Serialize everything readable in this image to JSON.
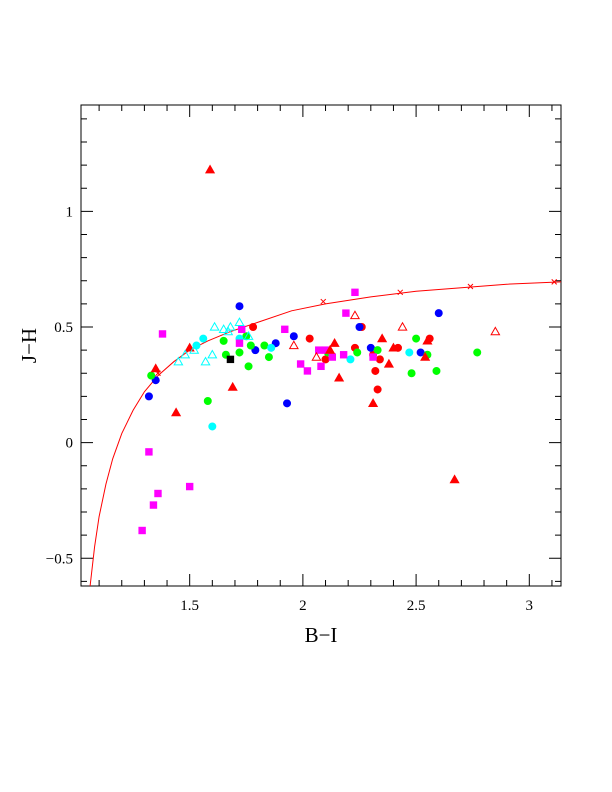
{
  "chart_data": {
    "type": "scatter",
    "xlabel": "B−I",
    "ylabel": "J−H",
    "xlim": [
      1.02,
      3.14
    ],
    "ylim": [
      -0.62,
      1.46
    ],
    "x_ticks": [
      {
        "v": 1.5,
        "label": "1.5"
      },
      {
        "v": 2.0,
        "label": "2"
      },
      {
        "v": 2.5,
        "label": "2.5"
      },
      {
        "v": 3.0,
        "label": "3"
      }
    ],
    "y_ticks": [
      {
        "v": -0.5,
        "label": "−0.5"
      },
      {
        "v": 0.0,
        "label": "0"
      },
      {
        "v": 0.5,
        "label": "0.5"
      },
      {
        "v": 1.0,
        "label": "1"
      }
    ],
    "grid": false,
    "colors": {
      "red": "#ff0000",
      "blue": "#0000ff",
      "green": "#00ff00",
      "cyan": "#00ffff",
      "magenta": "#ff00ff",
      "black": "#000000",
      "curve": "#ff0000"
    },
    "curve": {
      "color": "red",
      "points": [
        [
          1.06,
          -0.62
        ],
        [
          1.08,
          -0.45
        ],
        [
          1.1,
          -0.32
        ],
        [
          1.13,
          -0.18
        ],
        [
          1.16,
          -0.07
        ],
        [
          1.2,
          0.04
        ],
        [
          1.25,
          0.14
        ],
        [
          1.3,
          0.22
        ],
        [
          1.36,
          0.29
        ],
        [
          1.43,
          0.35
        ],
        [
          1.5,
          0.4
        ],
        [
          1.58,
          0.44
        ],
        [
          1.68,
          0.48
        ],
        [
          1.8,
          0.52
        ],
        [
          1.95,
          0.57
        ],
        [
          2.1,
          0.6
        ],
        [
          2.3,
          0.63
        ],
        [
          2.5,
          0.655
        ],
        [
          2.7,
          0.67
        ],
        [
          2.9,
          0.685
        ],
        [
          3.14,
          0.695
        ]
      ],
      "markers": [
        [
          1.36,
          0.3
        ],
        [
          2.09,
          0.61
        ],
        [
          2.43,
          0.65
        ],
        [
          2.74,
          0.675
        ],
        [
          3.11,
          0.695
        ]
      ]
    },
    "series": [
      {
        "marker": "circle",
        "color": "red",
        "filled": true,
        "points": [
          [
            1.78,
            0.5
          ],
          [
            2.03,
            0.45
          ],
          [
            2.1,
            0.36
          ],
          [
            2.23,
            0.41
          ],
          [
            2.26,
            0.5
          ],
          [
            2.31,
            0.38
          ],
          [
            2.32,
            0.31
          ],
          [
            2.33,
            0.23
          ],
          [
            2.34,
            0.36
          ],
          [
            2.42,
            0.41
          ],
          [
            2.56,
            0.45
          ]
        ]
      },
      {
        "marker": "circle",
        "color": "blue",
        "filled": true,
        "points": [
          [
            1.32,
            0.2
          ],
          [
            1.35,
            0.27
          ],
          [
            1.72,
            0.59
          ],
          [
            1.79,
            0.4
          ],
          [
            1.88,
            0.43
          ],
          [
            1.93,
            0.17
          ],
          [
            1.96,
            0.46
          ],
          [
            2.25,
            0.5
          ],
          [
            2.3,
            0.41
          ],
          [
            2.52,
            0.39
          ],
          [
            2.6,
            0.56
          ]
        ]
      },
      {
        "marker": "circle",
        "color": "green",
        "filled": true,
        "points": [
          [
            1.33,
            0.29
          ],
          [
            1.58,
            0.18
          ],
          [
            1.65,
            0.44
          ],
          [
            1.66,
            0.38
          ],
          [
            1.72,
            0.39
          ],
          [
            1.75,
            0.46
          ],
          [
            1.76,
            0.33
          ],
          [
            1.77,
            0.42
          ],
          [
            1.83,
            0.42
          ],
          [
            1.85,
            0.37
          ],
          [
            2.11,
            0.39
          ],
          [
            2.24,
            0.39
          ],
          [
            2.33,
            0.4
          ],
          [
            2.48,
            0.3
          ],
          [
            2.5,
            0.45
          ],
          [
            2.55,
            0.38
          ],
          [
            2.59,
            0.31
          ],
          [
            2.77,
            0.39
          ]
        ]
      },
      {
        "marker": "circle",
        "color": "cyan",
        "filled": true,
        "points": [
          [
            1.53,
            0.42
          ],
          [
            1.56,
            0.45
          ],
          [
            1.6,
            0.07
          ],
          [
            1.72,
            0.45
          ],
          [
            1.86,
            0.41
          ],
          [
            2.21,
            0.36
          ],
          [
            2.47,
            0.39
          ]
        ]
      },
      {
        "marker": "square",
        "color": "magenta",
        "filled": true,
        "points": [
          [
            1.29,
            -0.38
          ],
          [
            1.32,
            -0.04
          ],
          [
            1.34,
            -0.27
          ],
          [
            1.36,
            -0.22
          ],
          [
            1.38,
            0.47
          ],
          [
            1.5,
            -0.19
          ],
          [
            1.72,
            0.43
          ],
          [
            1.73,
            0.49
          ],
          [
            1.92,
            0.49
          ],
          [
            1.99,
            0.34
          ],
          [
            2.02,
            0.31
          ],
          [
            2.07,
            0.4
          ],
          [
            2.08,
            0.33
          ],
          [
            2.1,
            0.4
          ],
          [
            2.13,
            0.37
          ],
          [
            2.18,
            0.38
          ],
          [
            2.19,
            0.56
          ],
          [
            2.23,
            0.65
          ],
          [
            2.31,
            0.37
          ]
        ]
      },
      {
        "marker": "square",
        "color": "black",
        "filled": true,
        "points": [
          [
            1.68,
            0.36
          ]
        ]
      },
      {
        "marker": "triangle",
        "color": "red",
        "filled": true,
        "points": [
          [
            1.35,
            0.32
          ],
          [
            1.44,
            0.13
          ],
          [
            1.5,
            0.41
          ],
          [
            1.59,
            1.18
          ],
          [
            1.69,
            0.24
          ],
          [
            2.12,
            0.4
          ],
          [
            2.14,
            0.43
          ],
          [
            2.16,
            0.28
          ],
          [
            2.31,
            0.17
          ],
          [
            2.35,
            0.45
          ],
          [
            2.38,
            0.34
          ],
          [
            2.4,
            0.41
          ],
          [
            2.54,
            0.37
          ],
          [
            2.55,
            0.44
          ],
          [
            2.67,
            -0.16
          ]
        ]
      },
      {
        "marker": "triangle",
        "color": "red",
        "filled": false,
        "points": [
          [
            1.96,
            0.42
          ],
          [
            2.06,
            0.37
          ],
          [
            2.23,
            0.55
          ],
          [
            2.44,
            0.5
          ],
          [
            2.85,
            0.48
          ]
        ]
      },
      {
        "marker": "triangle",
        "color": "cyan",
        "filled": false,
        "points": [
          [
            1.45,
            0.35
          ],
          [
            1.48,
            0.38
          ],
          [
            1.52,
            0.4
          ],
          [
            1.57,
            0.35
          ],
          [
            1.6,
            0.38
          ],
          [
            1.61,
            0.5
          ],
          [
            1.65,
            0.49
          ],
          [
            1.67,
            0.48
          ],
          [
            1.68,
            0.5
          ],
          [
            1.72,
            0.52
          ],
          [
            1.76,
            0.46
          ]
        ]
      }
    ]
  }
}
